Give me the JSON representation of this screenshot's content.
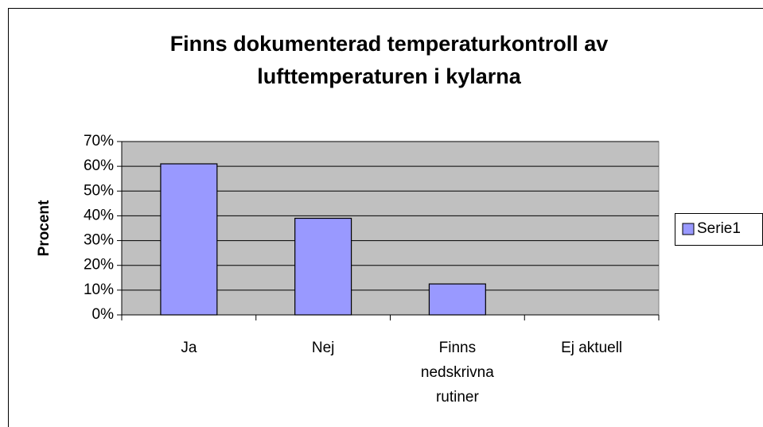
{
  "chart_data": {
    "type": "bar",
    "title": [
      "Finns dokumenterad temperaturkontroll av",
      "lufttemperaturen i kylarna"
    ],
    "ylabel": "Procent",
    "categories": [
      "Ja",
      "Nej",
      "Finns nedskrivna rutiner",
      "Ej aktuell"
    ],
    "series": [
      {
        "name": "Serie1",
        "color": "#9999ff",
        "values": [
          61,
          39,
          12.5,
          0
        ]
      }
    ],
    "ylim": [
      0,
      70
    ],
    "yticks": [
      {
        "value": 0,
        "label": "0%"
      },
      {
        "value": 10,
        "label": "10%"
      },
      {
        "value": 20,
        "label": "20%"
      },
      {
        "value": 30,
        "label": "30%"
      },
      {
        "value": 40,
        "label": "40%"
      },
      {
        "value": 50,
        "label": "50%"
      },
      {
        "value": 60,
        "label": "60%"
      },
      {
        "value": 70,
        "label": "70%"
      }
    ],
    "grid": true,
    "legend": "right"
  }
}
